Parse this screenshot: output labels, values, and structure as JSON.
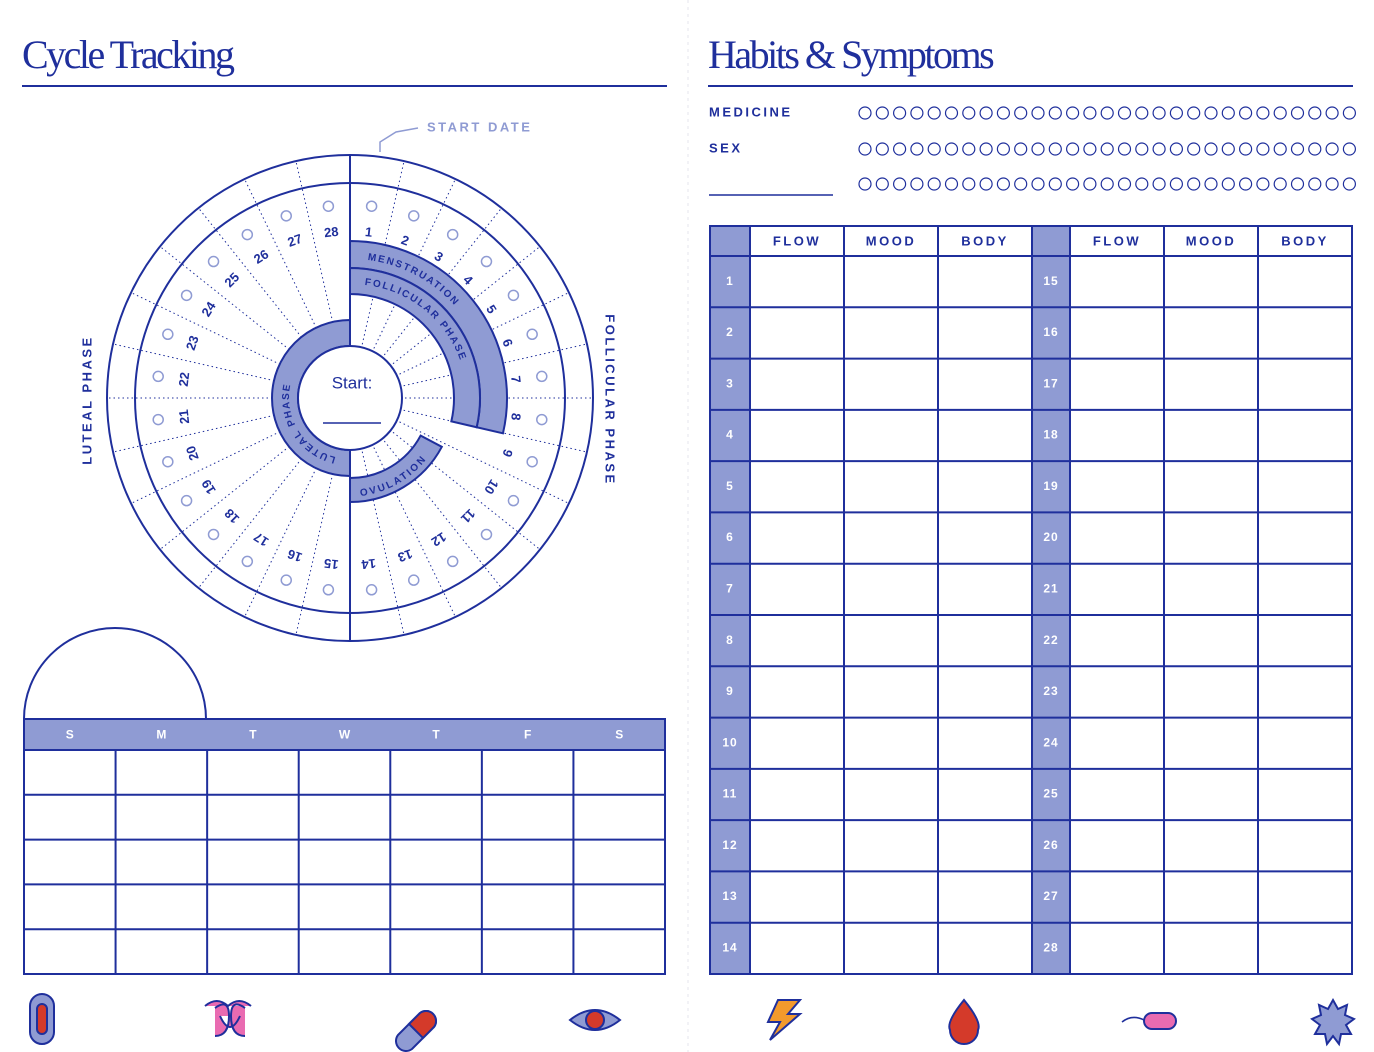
{
  "left": {
    "title": "Cycle Tracking",
    "start_date": "START DATE",
    "luteal_phase": "LUTEAL PHASE",
    "follicular_phase": "FOLLICULAR PHASE",
    "arcs": {
      "menstruation": "MENSTRUATION",
      "follicular": "FOLLICULAR PHASE",
      "ovulation": "OVULATION",
      "luteal": "LUTEAL PHASE"
    },
    "start": "Start:",
    "days": [
      1,
      2,
      3,
      4,
      5,
      6,
      7,
      8,
      9,
      10,
      11,
      12,
      13,
      14,
      15,
      16,
      17,
      18,
      19,
      20,
      21,
      22,
      23,
      24,
      25,
      26,
      27,
      28
    ],
    "weekdays": [
      "S",
      "M",
      "T",
      "W",
      "T",
      "F",
      "S"
    ]
  },
  "right": {
    "title": "Habits & Symptoms",
    "habits": [
      "MEDICINE",
      "SEX"
    ],
    "columns": [
      "FLOW",
      "MOOD",
      "BODY"
    ],
    "days": [
      1,
      2,
      3,
      4,
      5,
      6,
      7,
      8,
      9,
      10,
      11,
      12,
      13,
      14,
      15,
      16,
      17,
      18,
      19,
      20,
      21,
      22,
      23,
      24,
      25,
      26,
      27,
      28
    ]
  }
}
